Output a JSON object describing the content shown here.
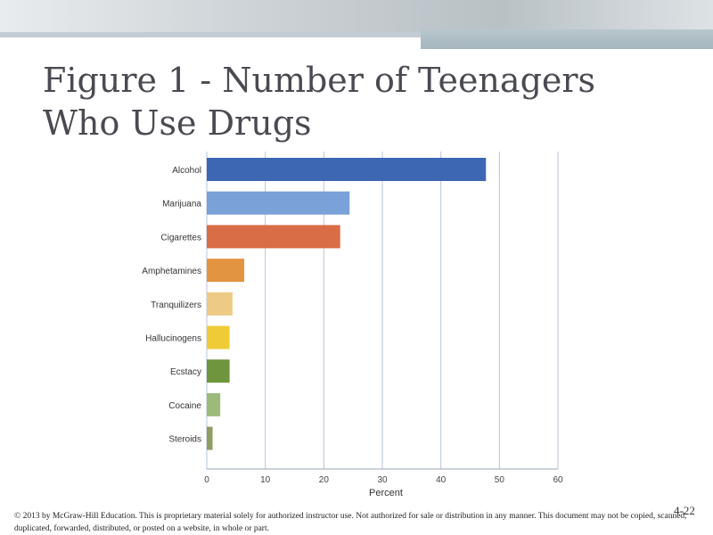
{
  "slide": {
    "title": "Figure 1 - Number of Teenagers Who Use Drugs",
    "footer": "© 2013 by McGraw-Hill Education.  This is proprietary material solely for authorized instructor use.  Not authorized for sale or distribution in any manner.  This document may not be copied, scanned, duplicated, forwarded, distributed, or posted on a website, in whole or part.",
    "page_number": "4-22"
  },
  "chart_data": {
    "type": "bar",
    "orientation": "horizontal",
    "title": "",
    "xlabel": "Percent",
    "ylabel": "",
    "xlim": [
      0,
      60
    ],
    "xticks": [
      0,
      10,
      20,
      30,
      40,
      50,
      60
    ],
    "grid": true,
    "categories": [
      "Alcohol",
      "Marijuana",
      "Cigarettes",
      "Amphetamines",
      "Tranquilizers",
      "Hallucinogens",
      "Ecstacy",
      "Cocaine",
      "Steroids"
    ],
    "values": [
      47.7,
      24.4,
      22.8,
      6.4,
      4.4,
      3.9,
      3.9,
      2.3,
      1.0
    ],
    "colors": [
      "#3d66b3",
      "#7aa1d8",
      "#d96d45",
      "#e39440",
      "#edcb85",
      "#efcb38",
      "#6f953f",
      "#9cba7a",
      "#8f9d62"
    ]
  }
}
